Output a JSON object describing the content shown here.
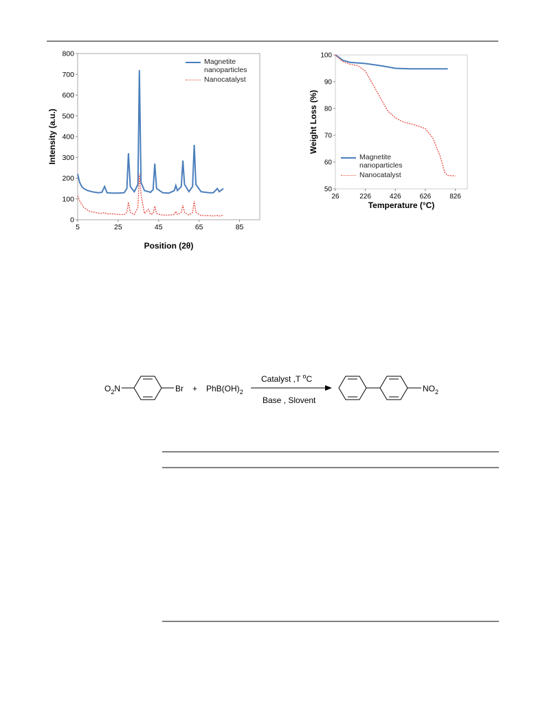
{
  "chart_data": [
    {
      "type": "line",
      "x_label": "Position (2θ)",
      "y_label": "Intensity (a.u.)",
      "xlim": [
        5,
        95
      ],
      "xticks": [
        5,
        25,
        45,
        65,
        85
      ],
      "ylim": [
        0,
        800
      ],
      "yticks": [
        0,
        100,
        200,
        300,
        400,
        500,
        600,
        700,
        800
      ],
      "legend": "top-right",
      "series": [
        {
          "name": "Magnetite nanoparticles",
          "color": "#4a7ebb",
          "line_style": "solid",
          "x": [
            5,
            6,
            7,
            8,
            10,
            12,
            15,
            17,
            18.3,
            19.5,
            22,
            25,
            28,
            29.3,
            30.1,
            31,
            33,
            34.8,
            35.5,
            36.3,
            38,
            40,
            41,
            42.3,
            43.1,
            44,
            47,
            50,
            52.8,
            53.5,
            54.3,
            56.2,
            57,
            57.8,
            60,
            61.8,
            62.6,
            63.4,
            66,
            70,
            72,
            74,
            75,
            77
          ],
          "values": [
            220,
            180,
            160,
            150,
            140,
            135,
            130,
            132,
            160,
            130,
            128,
            128,
            130,
            150,
            320,
            160,
            135,
            170,
            720,
            180,
            140,
            135,
            132,
            145,
            270,
            150,
            130,
            128,
            140,
            165,
            140,
            160,
            285,
            170,
            135,
            160,
            360,
            170,
            135,
            130,
            130,
            150,
            135,
            150
          ]
        },
        {
          "name": "Nanocatalyst",
          "color": "#e8534a",
          "line_style": "dotted",
          "x": [
            5,
            6,
            7,
            8,
            10,
            12,
            15,
            17,
            18.3,
            19.5,
            22,
            25,
            28,
            29.3,
            30.1,
            31,
            33,
            34.8,
            35.5,
            36.3,
            38,
            40,
            41,
            42.3,
            43.1,
            44,
            47,
            50,
            52.8,
            53.5,
            54.3,
            56.2,
            57,
            57.8,
            60,
            61.8,
            62.6,
            63.4,
            66,
            70,
            72,
            74,
            75,
            77
          ],
          "values": [
            115,
            90,
            75,
            60,
            45,
            38,
            32,
            30,
            35,
            28,
            28,
            25,
            25,
            35,
            85,
            35,
            25,
            60,
            220,
            120,
            30,
            50,
            25,
            30,
            65,
            30,
            22,
            22,
            25,
            40,
            25,
            35,
            70,
            35,
            22,
            35,
            90,
            35,
            20,
            20,
            18,
            20,
            18,
            22
          ]
        }
      ]
    },
    {
      "type": "line",
      "x_label": "Temperature (°C)",
      "y_label": "Weight Loss (%)",
      "xlim": [
        26,
        906
      ],
      "xticks": [
        26,
        226,
        426,
        626,
        826
      ],
      "ylim": [
        50,
        100
      ],
      "yticks": [
        50,
        60,
        70,
        80,
        90,
        100
      ],
      "legend": "bottom-left",
      "series": [
        {
          "name": "Magnetite nanoparticles",
          "color": "#4a7ebb",
          "line_style": "solid",
          "x": [
            26,
            76,
            126,
            226,
            326,
            376,
            426,
            526,
            626,
            776
          ],
          "values": [
            100,
            98,
            97.2,
            96.8,
            96,
            95.5,
            95,
            94.8,
            94.8,
            94.8
          ]
        },
        {
          "name": "Nanocatalyst",
          "color": "#e8534a",
          "line_style": "dotted",
          "x": [
            26,
            76,
            126,
            176,
            226,
            276,
            326,
            376,
            426,
            476,
            526,
            576,
            626,
            676,
            726,
            756,
            776,
            826
          ],
          "values": [
            100,
            97.5,
            96.5,
            96,
            94,
            89,
            84,
            79,
            76.5,
            75,
            74.3,
            73.5,
            72.5,
            69,
            62,
            56,
            55,
            54.8
          ]
        }
      ]
    }
  ],
  "scheme": {
    "reactant_group": [
      "O",
      "2",
      "N"
    ],
    "leaving_group": "Br",
    "plus": "+",
    "boronic_acid": [
      "PhB(OH)",
      "2"
    ],
    "above_arrow": [
      "Catalyst ,T ",
      "o",
      "C"
    ],
    "below_arrow": "Base , Slovent",
    "product_group": [
      "NO",
      "2"
    ]
  }
}
